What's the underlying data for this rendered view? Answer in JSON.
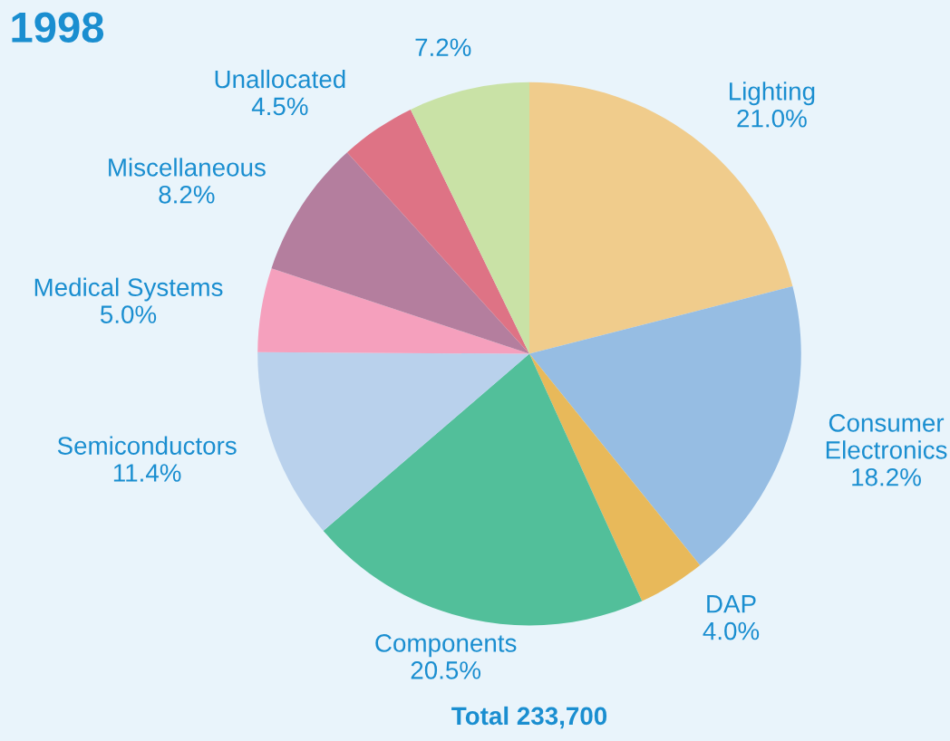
{
  "chart_data": {
    "type": "pie",
    "title": "1998",
    "categories": [
      "Lighting",
      "Consumer\nElectronics",
      "DAP",
      "Components",
      "Semiconductors",
      "Medical Systems",
      "Miscellaneous",
      "Unallocated",
      null
    ],
    "values": [
      21.0,
      18.2,
      4.0,
      20.5,
      11.4,
      5.0,
      8.2,
      4.5,
      7.2
    ],
    "value_labels": [
      "21.0%",
      "18.2%",
      "4.0%",
      "20.5%",
      "11.4%",
      "5.0%",
      "8.2%",
      "4.5%",
      "7.2%"
    ],
    "colors": [
      "#f0cc8c",
      "#96bde3",
      "#e8b95a",
      "#52bf9a",
      "#b9d1ec",
      "#f5a0bd",
      "#b47e9e",
      "#de7385",
      "#c9e2a6"
    ],
    "annotations": [
      "Total 233,700"
    ],
    "legend": false
  }
}
